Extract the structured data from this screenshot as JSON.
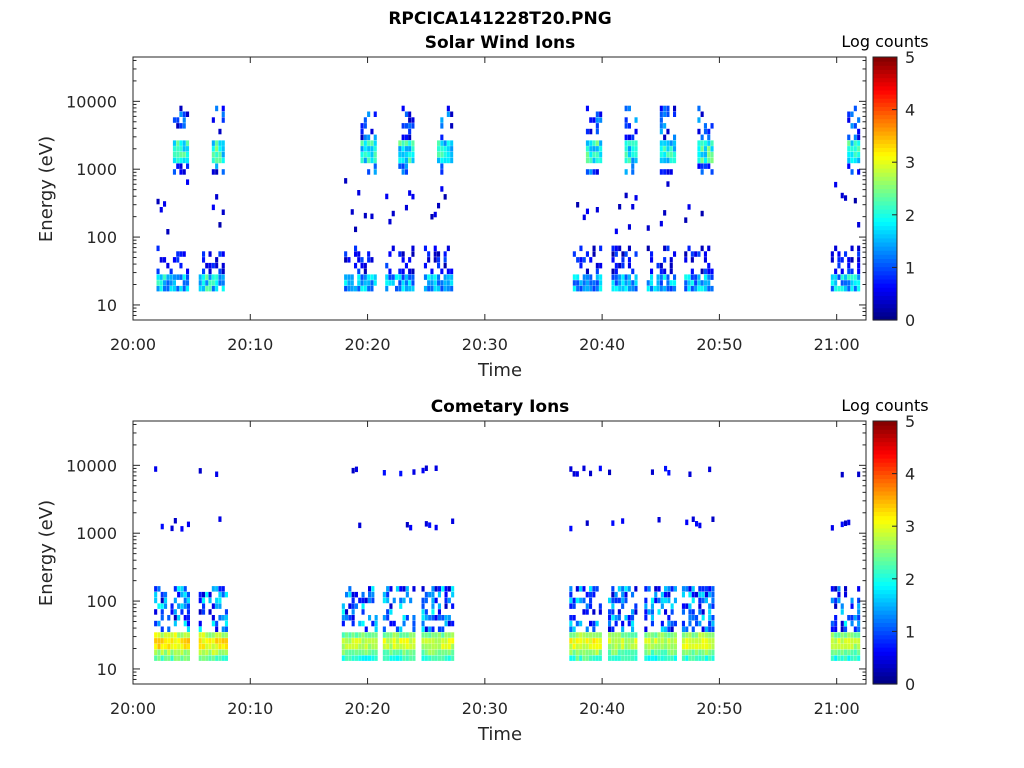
{
  "figure_title": "RPCICA141228T20.PNG",
  "colorbar": {
    "label": "Log counts",
    "ticks": [
      "0",
      "1",
      "2",
      "3",
      "4",
      "5"
    ],
    "range": [
      0,
      5
    ],
    "colormap": "jet"
  },
  "chart_data": [
    {
      "type": "heatmap",
      "title": "Solar Wind Ions",
      "xlabel": "Time",
      "ylabel": "Energy (eV)",
      "x_ticks": [
        "20:00",
        "20:10",
        "20:20",
        "20:30",
        "20:40",
        "20:50",
        "21:00"
      ],
      "x_range_minutes": [
        0,
        62.5
      ],
      "y_ticks": [
        "10",
        "100",
        "1000",
        "10000"
      ],
      "y_scale": "log",
      "y_range": [
        6,
        45000
      ],
      "bursts": [
        {
          "start_min": 2.0,
          "end_min": 4.8,
          "high_band_max_log_counts": 2.4,
          "low_band_max_log_counts": 2.2
        },
        {
          "start_min": 5.6,
          "end_min": 7.8,
          "high_band_max_log_counts": 2.6,
          "low_band_max_log_counts": 2.5
        },
        {
          "start_min": 18.0,
          "end_min": 20.8,
          "high_band_max_log_counts": 2.4,
          "low_band_max_log_counts": 2.0
        },
        {
          "start_min": 21.5,
          "end_min": 23.8,
          "high_band_max_log_counts": 2.5,
          "low_band_max_log_counts": 2.0
        },
        {
          "start_min": 24.8,
          "end_min": 27.2,
          "high_band_max_log_counts": 2.3,
          "low_band_max_log_counts": 2.0
        },
        {
          "start_min": 37.5,
          "end_min": 39.8,
          "high_band_max_log_counts": 2.6,
          "low_band_max_log_counts": 2.0
        },
        {
          "start_min": 40.8,
          "end_min": 43.0,
          "high_band_max_log_counts": 2.3,
          "low_band_max_log_counts": 2.0
        },
        {
          "start_min": 43.8,
          "end_min": 46.2,
          "high_band_max_log_counts": 2.4,
          "low_band_max_log_counts": 2.0
        },
        {
          "start_min": 47.0,
          "end_min": 49.3,
          "high_band_max_log_counts": 2.6,
          "low_band_max_log_counts": 2.0
        },
        {
          "start_min": 59.5,
          "end_min": 62.0,
          "high_band_max_log_counts": 2.5,
          "low_band_max_log_counts": 2.2
        }
      ]
    },
    {
      "type": "heatmap",
      "title": "Cometary Ions",
      "xlabel": "Time",
      "ylabel": "Energy (eV)",
      "x_ticks": [
        "20:00",
        "20:10",
        "20:20",
        "20:30",
        "20:40",
        "20:50",
        "21:00"
      ],
      "x_range_minutes": [
        0,
        62.5
      ],
      "y_ticks": [
        "10",
        "100",
        "1000",
        "10000"
      ],
      "y_scale": "log",
      "y_range": [
        6,
        45000
      ],
      "bursts": [
        {
          "start_min": 1.8,
          "end_min": 4.8,
          "low_band_max_log_counts": 3.7
        },
        {
          "start_min": 5.6,
          "end_min": 8.0,
          "low_band_max_log_counts": 3.6
        },
        {
          "start_min": 17.8,
          "end_min": 20.8,
          "low_band_max_log_counts": 3.2
        },
        {
          "start_min": 21.3,
          "end_min": 24.0,
          "low_band_max_log_counts": 3.3
        },
        {
          "start_min": 24.6,
          "end_min": 27.2,
          "low_band_max_log_counts": 3.3
        },
        {
          "start_min": 37.2,
          "end_min": 39.8,
          "low_band_max_log_counts": 3.5
        },
        {
          "start_min": 40.5,
          "end_min": 43.0,
          "low_band_max_log_counts": 3.2
        },
        {
          "start_min": 43.6,
          "end_min": 46.3,
          "low_band_max_log_counts": 3.2
        },
        {
          "start_min": 46.8,
          "end_min": 49.5,
          "low_band_max_log_counts": 3.4
        },
        {
          "start_min": 59.5,
          "end_min": 62.0,
          "low_band_max_log_counts": 3.2
        }
      ]
    }
  ]
}
